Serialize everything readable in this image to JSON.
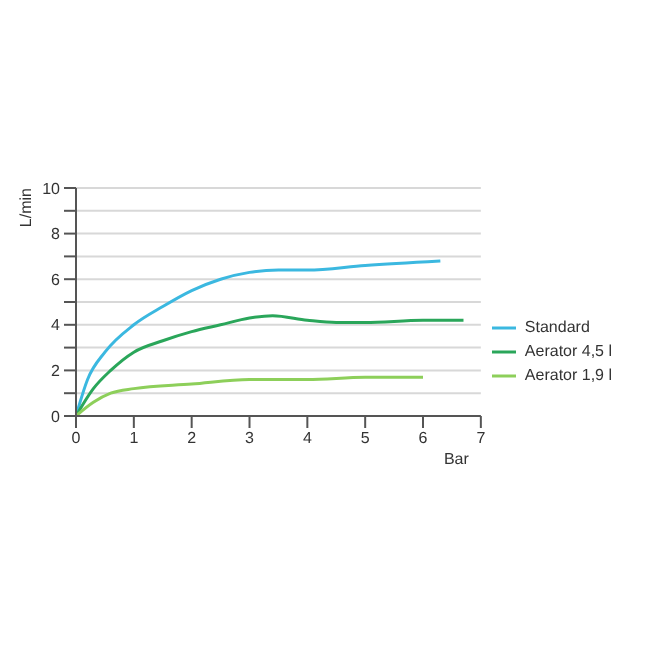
{
  "chart_data": {
    "type": "line",
    "xlabel": "Bar",
    "ylabel": "L/min",
    "xlim": [
      0,
      7
    ],
    "xticks": [
      0,
      1,
      2,
      3,
      4,
      5,
      6,
      7
    ],
    "ylim": [
      0,
      10
    ],
    "yticks": [
      0,
      {
        "value": 1,
        "label": null
      },
      2,
      {
        "value": 3,
        "label": null
      },
      4,
      {
        "value": 5,
        "label": null
      },
      6,
      {
        "value": 7,
        "label": null
      },
      8,
      {
        "value": 9,
        "label": null
      },
      10
    ],
    "grid": "y",
    "legend": "right",
    "marker": "none",
    "line_style": "solid",
    "series": [
      {
        "name": "Standard",
        "color": "#3bb8e0",
        "x": [
          0,
          0.2,
          0.5,
          1,
          1.5,
          2,
          2.5,
          3,
          3.5,
          4,
          5,
          6.3
        ],
        "values": [
          0,
          1.6,
          2.8,
          4,
          4.8,
          5.5,
          6,
          6.3,
          6.4,
          6.4,
          6.6,
          6.8
        ]
      },
      {
        "name": "Aerator 4,5 l",
        "color": "#2aa65a",
        "x": [
          0,
          0.3,
          0.6,
          1,
          1.5,
          2,
          2.5,
          3,
          3.4,
          4,
          4.5,
          5,
          6,
          6.7
        ],
        "values": [
          0,
          1.2,
          2,
          2.8,
          3.3,
          3.7,
          4,
          4.3,
          4.4,
          4.2,
          4.1,
          4.1,
          4.2,
          4.2
        ]
      },
      {
        "name": "Aerator 1,9 l",
        "color": "#8dcf5a",
        "x": [
          0,
          0.3,
          0.6,
          1,
          2,
          3,
          4,
          5,
          6
        ],
        "values": [
          0,
          0.6,
          1,
          1.2,
          1.4,
          1.6,
          1.6,
          1.7,
          1.7
        ]
      }
    ]
  }
}
